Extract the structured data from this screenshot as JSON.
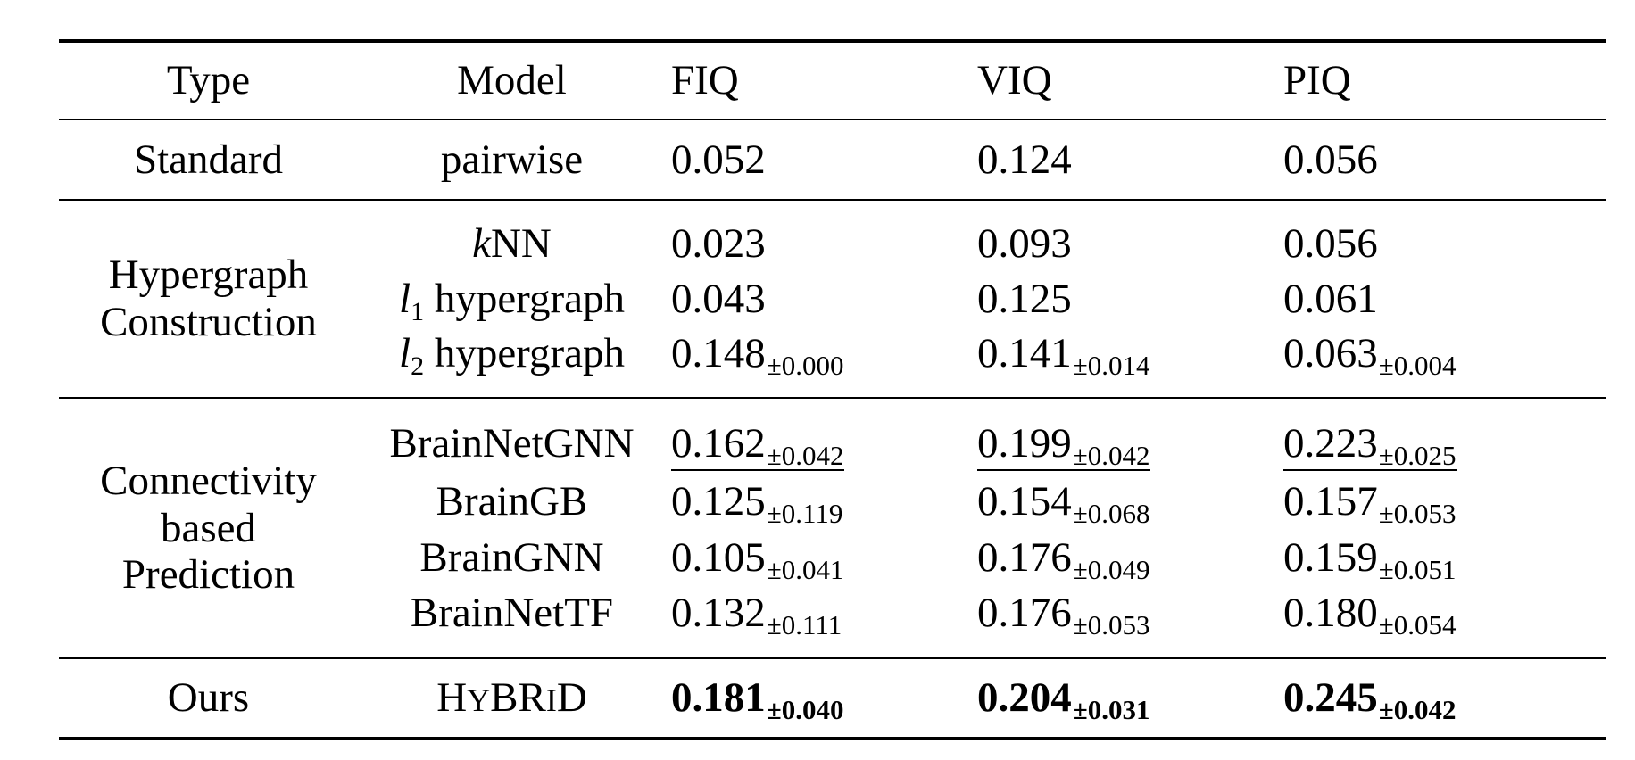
{
  "table": {
    "headers": {
      "type": "Type",
      "model": "Model",
      "fiq": "FIQ",
      "viq": "VIQ",
      "piq": "PIQ"
    },
    "groups": {
      "standard": {
        "type": "Standard",
        "rows": [
          {
            "model": "pairwise",
            "fiq": "0.052",
            "viq": "0.124",
            "piq": "0.056"
          }
        ]
      },
      "hypergraph": {
        "type_line1": "Hypergraph",
        "type_line2": "Construction",
        "rows": [
          {
            "model_prefix": "k",
            "model_rest": "NN",
            "fiq": "0.023",
            "viq": "0.093",
            "piq": "0.056"
          },
          {
            "model_var": "l",
            "model_sub": "1",
            "model_rest": " hypergraph",
            "fiq": "0.043",
            "viq": "0.125",
            "piq": "0.061"
          },
          {
            "model_var": "l",
            "model_sub": "2",
            "model_rest": " hypergraph",
            "fiq": "0.148",
            "fiq_pm": "±0.000",
            "viq": "0.141",
            "viq_pm": "±0.014",
            "piq": "0.063",
            "piq_pm": "±0.004"
          }
        ]
      },
      "connectivity": {
        "type_line1": "Connectivity",
        "type_line2": "based",
        "type_line3": "Prediction",
        "rows": [
          {
            "model": "BrainNetGNN",
            "fiq": "0.162",
            "fiq_pm": "±0.042",
            "viq": "0.199",
            "viq_pm": "±0.042",
            "piq": "0.223",
            "piq_pm": "±0.025",
            "underlined": true
          },
          {
            "model": "BrainGB",
            "fiq": "0.125",
            "fiq_pm": "±0.119",
            "viq": "0.154",
            "viq_pm": "±0.068",
            "piq": "0.157",
            "piq_pm": "±0.053"
          },
          {
            "model": "BrainGNN",
            "fiq": "0.105",
            "fiq_pm": "±0.041",
            "viq": "0.176",
            "viq_pm": "±0.049",
            "piq": "0.159",
            "piq_pm": "±0.051"
          },
          {
            "model": "BrainNetTF",
            "fiq": "0.132",
            "fiq_pm": "±0.111",
            "viq": "0.176",
            "viq_pm": "±0.053",
            "piq": "0.180",
            "piq_pm": "±0.054"
          }
        ]
      },
      "ours": {
        "type": "Ours",
        "model_parts": [
          "H",
          "Y",
          "BR",
          "I",
          "D"
        ],
        "fiq": "0.181",
        "fiq_pm": "±0.040",
        "viq": "0.204",
        "viq_pm": "±0.031",
        "piq": "0.245",
        "piq_pm": "±0.042",
        "bold": true
      }
    }
  }
}
